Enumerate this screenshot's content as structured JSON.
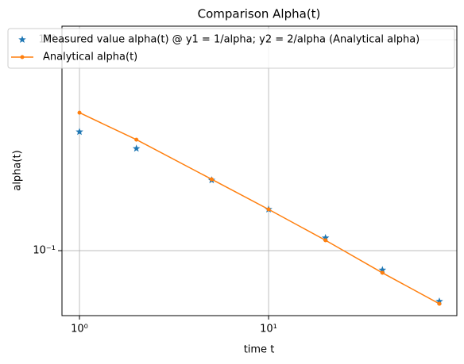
{
  "chart_data": {
    "type": "line",
    "title": "Comparison Alpha(t)",
    "xlabel": "time t",
    "ylabel": "alpha(t)",
    "log_x": true,
    "log_y": true,
    "grid": true,
    "legend": "upper left",
    "xlim": [
      0.808,
      99
    ],
    "ylim": [
      0.0492,
      1.16
    ],
    "xticks": [
      {
        "value": 1,
        "label": "10⁰"
      },
      {
        "value": 10,
        "label": "10¹"
      }
    ],
    "yticks": [
      {
        "value": 0.1,
        "label": "10⁻¹"
      },
      {
        "value": 1,
        "label": "10⁰"
      }
    ],
    "series": [
      {
        "name": "Measured value alpha(t) @ y1 = 1/alpha; y2 = 2/alpha (Analytical alpha)",
        "color": "#1f77b4",
        "marker": "star",
        "line": false,
        "x": [
          1,
          2,
          5,
          10,
          20,
          40,
          80
        ],
        "values": [
          0.366,
          0.305,
          0.216,
          0.157,
          0.115,
          0.081,
          0.0575
        ]
      },
      {
        "name": "Analytical alpha(t)",
        "color": "#ff7f0e",
        "marker": "dot",
        "line": true,
        "x": [
          1,
          2,
          5,
          10,
          20,
          40,
          80
        ],
        "values": [
          0.451,
          0.336,
          0.218,
          0.157,
          0.112,
          0.0785,
          0.056
        ]
      }
    ]
  }
}
